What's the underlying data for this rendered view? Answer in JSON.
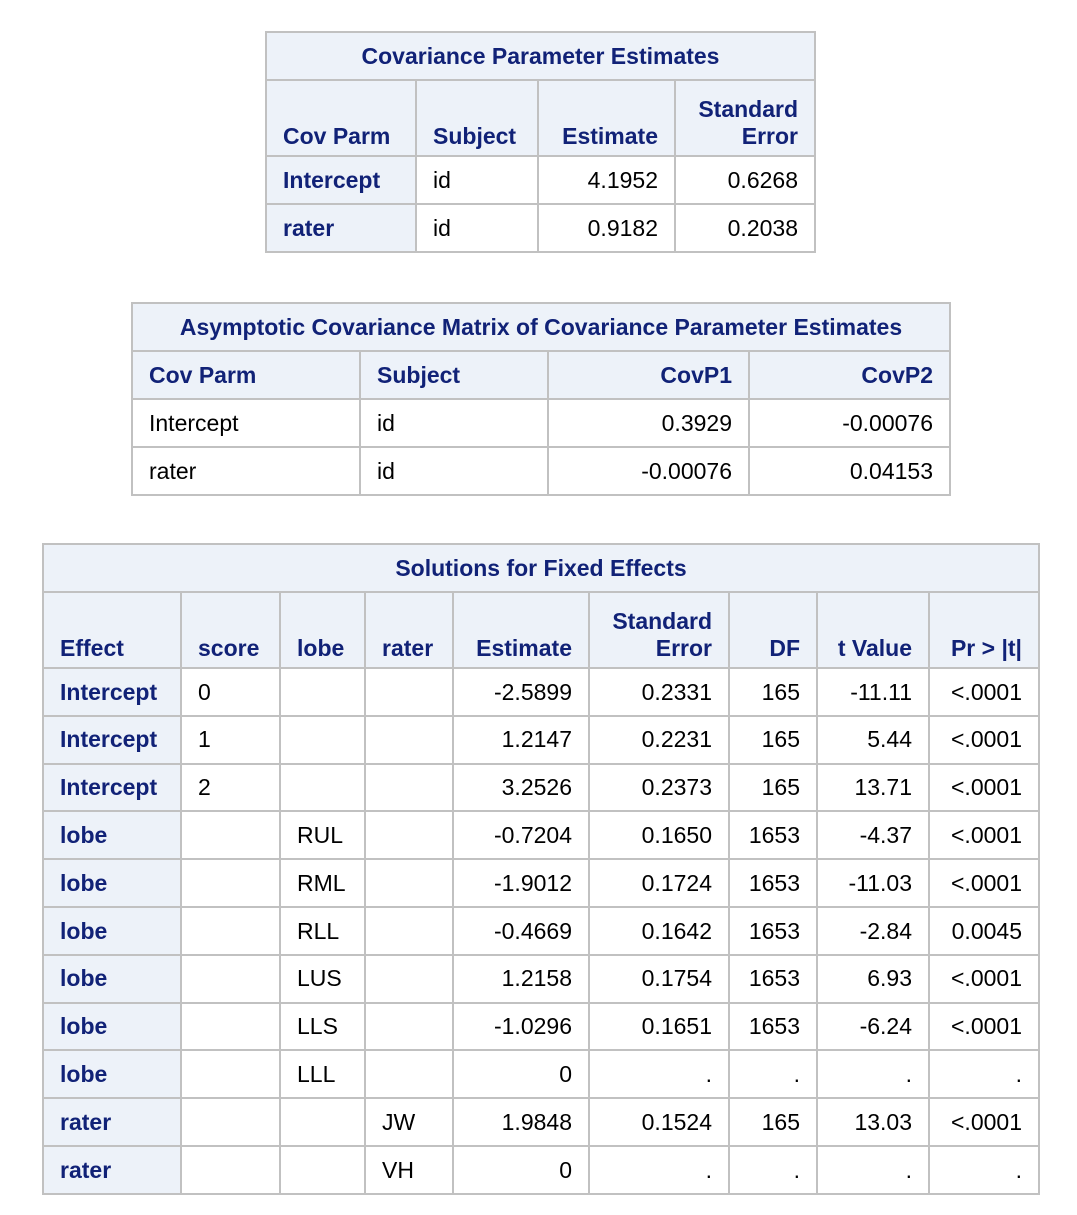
{
  "cov_parm_estimates": {
    "title": "Covariance Parameter Estimates",
    "headers": [
      "Cov Parm",
      "Subject",
      "Estimate",
      "Standard\nError"
    ],
    "rows": [
      [
        "Intercept",
        "id",
        "4.1952",
        "0.6268"
      ],
      [
        "rater",
        "id",
        "0.9182",
        "0.2038"
      ]
    ]
  },
  "asymptotic_cov_matrix": {
    "title": "Asymptotic Covariance Matrix of Covariance Parameter Estimates",
    "headers": [
      "Cov Parm",
      "Subject",
      "CovP1",
      "CovP2"
    ],
    "rows": [
      [
        "Intercept",
        "id",
        "0.3929",
        "-0.00076"
      ],
      [
        "rater",
        "id",
        "-0.00076",
        "0.04153"
      ]
    ]
  },
  "fixed_effects": {
    "title": "Solutions for Fixed Effects",
    "headers": [
      "Effect",
      "score",
      "lobe",
      "rater",
      "Estimate",
      "Standard\nError",
      "DF",
      "t Value",
      "Pr > |t|"
    ],
    "rows": [
      [
        "Intercept",
        "0",
        "",
        "",
        "-2.5899",
        "0.2331",
        "165",
        "-11.11",
        "<.0001"
      ],
      [
        "Intercept",
        "1",
        "",
        "",
        "1.2147",
        "0.2231",
        "165",
        "5.44",
        "<.0001"
      ],
      [
        "Intercept",
        "2",
        "",
        "",
        "3.2526",
        "0.2373",
        "165",
        "13.71",
        "<.0001"
      ],
      [
        "lobe",
        "",
        "RUL",
        "",
        "-0.7204",
        "0.1650",
        "1653",
        "-4.37",
        "<.0001"
      ],
      [
        "lobe",
        "",
        "RML",
        "",
        "-1.9012",
        "0.1724",
        "1653",
        "-11.03",
        "<.0001"
      ],
      [
        "lobe",
        "",
        "RLL",
        "",
        "-0.4669",
        "0.1642",
        "1653",
        "-2.84",
        "0.0045"
      ],
      [
        "lobe",
        "",
        "LUS",
        "",
        "1.2158",
        "0.1754",
        "1653",
        "6.93",
        "<.0001"
      ],
      [
        "lobe",
        "",
        "LLS",
        "",
        "-1.0296",
        "0.1651",
        "1653",
        "-6.24",
        "<.0001"
      ],
      [
        "lobe",
        "",
        "LLL",
        "",
        "0",
        ".",
        ".",
        ".",
        "."
      ],
      [
        "rater",
        "",
        "",
        "JW",
        "1.9848",
        "0.1524",
        "165",
        "13.03",
        "<.0001"
      ],
      [
        "rater",
        "",
        "",
        "VH",
        "0",
        ".",
        ".",
        ".",
        "."
      ]
    ]
  }
}
